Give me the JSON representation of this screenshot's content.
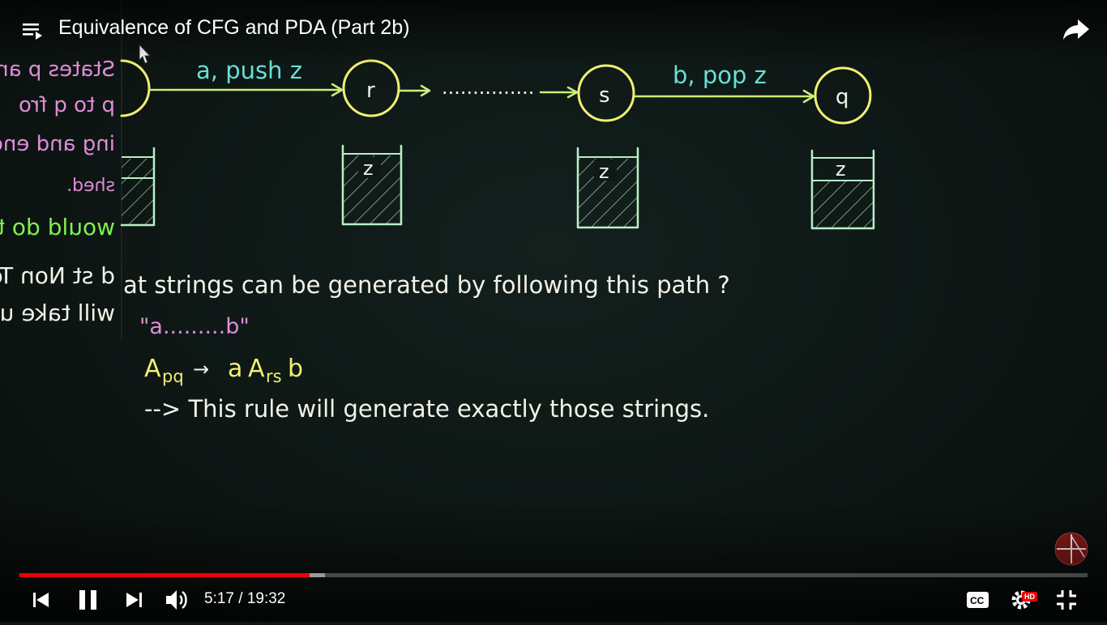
{
  "player": {
    "title": "Equivalence of CFG and PDA (Part 2b)",
    "time_current": "5:17",
    "time_separator": "/",
    "time_total": "19:32",
    "progress_played": 0.272,
    "progress_buffered": 0.286,
    "hd_label": "HD",
    "accent_color": "#ee0000"
  },
  "icons": {
    "playlist": "playlist-icon",
    "share": "share-icon",
    "previous": "skip-previous-icon",
    "pause": "pause-icon",
    "next": "skip-next-icon",
    "volume": "volume-icon",
    "captions": "captions-icon",
    "settings": "gear-icon",
    "exit_fullscreen": "exit-fullscreen-icon",
    "channel": "channel-logo-icon"
  },
  "board": {
    "transition1_label": "a, push z",
    "transition2_label": "b, pop z",
    "state_r": "r",
    "state_s": "s",
    "state_q": "q",
    "dots": "...............",
    "stack_symbol": "z",
    "question": "at strings can be generated by following this path ?",
    "string_example": "\"a.........b\"",
    "rule_lhs_A": "A",
    "rule_lhs_sub": "pq",
    "rule_arrow": "→",
    "rule_a": "a",
    "rule_rhs_A": "A",
    "rule_rhs_sub": "rs",
    "rule_b": "b",
    "conclusion": "--> This rule will generate exactly those strings.",
    "colors": {
      "chalk_green": "#c9f07a",
      "chalk_cyan": "#66e0d8",
      "chalk_white": "#f2f2e6",
      "chalk_pink": "#e08cd8",
      "chalk_yellow": "#f0f070",
      "chalk_lime": "#7ef050",
      "stack_outline": "#b8f0c8"
    }
  },
  "mirror_panel": {
    "line1": "States p an",
    "line2": "p to q fro",
    "line3": "ing and end",
    "line4": "shed.",
    "line5": "would do th",
    "line6": "d st Non Ter",
    "line7": "will take us t"
  }
}
